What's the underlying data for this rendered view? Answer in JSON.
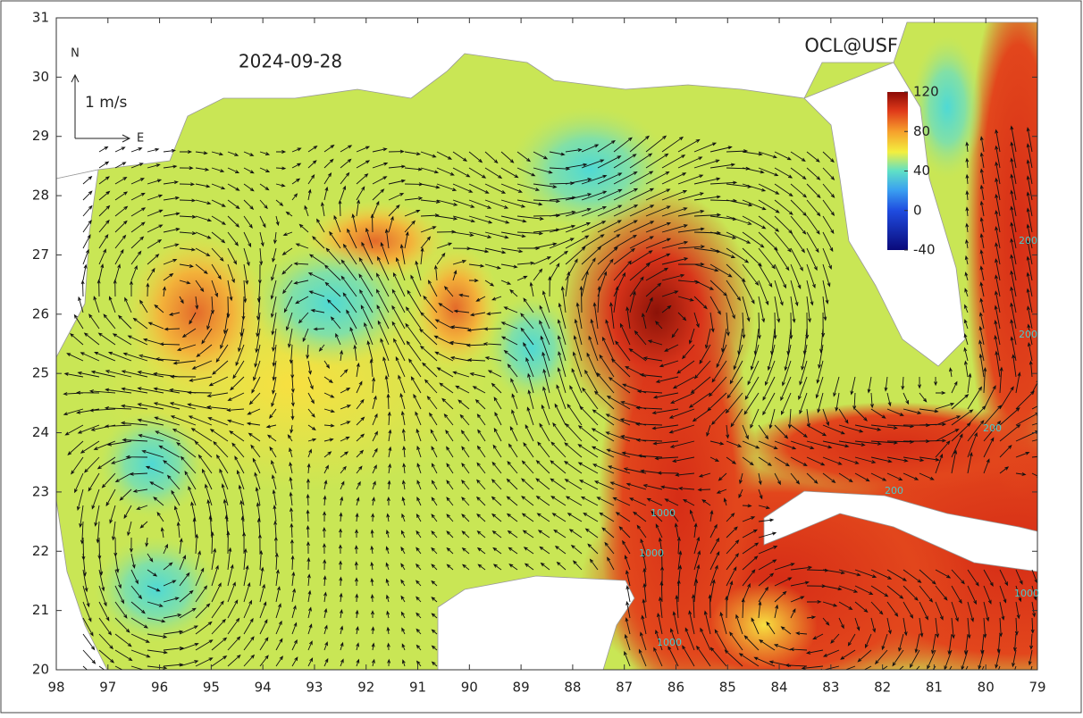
{
  "map": {
    "date": "2024-09-28",
    "credit": "OCL@USF",
    "compass": {
      "north": "N",
      "east": "E",
      "scale": "1 m/s"
    },
    "xticks": [
      98,
      97,
      96,
      95,
      94,
      93,
      92,
      91,
      90,
      89,
      88,
      87,
      86,
      85,
      84,
      83,
      82,
      81,
      80,
      79
    ],
    "xlim": [
      98,
      79
    ],
    "yticks": [
      20,
      21,
      22,
      23,
      24,
      25,
      26,
      27,
      28,
      29,
      30,
      31
    ],
    "ylim": [
      20,
      31
    ],
    "colorbar": {
      "ticks": [
        120,
        80,
        40,
        0,
        -40
      ],
      "lim": [
        -40,
        120
      ]
    },
    "contour_labels": [
      200,
      200,
      200,
      200,
      1000,
      1000,
      1000,
      1000
    ]
  }
}
